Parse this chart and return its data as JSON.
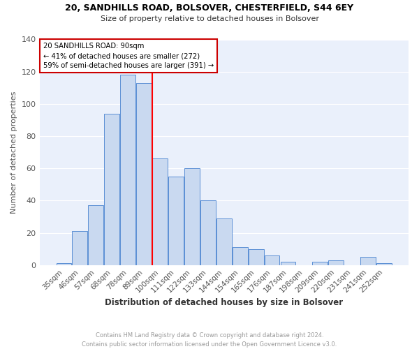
{
  "title1": "20, SANDHILLS ROAD, BOLSOVER, CHESTERFIELD, S44 6EY",
  "title2": "Size of property relative to detached houses in Bolsover",
  "xlabel": "Distribution of detached houses by size in Bolsover",
  "ylabel": "Number of detached properties",
  "footnote1": "Contains HM Land Registry data © Crown copyright and database right 2024.",
  "footnote2": "Contains public sector information licensed under the Open Government Licence v3.0.",
  "bar_labels": [
    "35sqm",
    "46sqm",
    "57sqm",
    "68sqm",
    "78sqm",
    "89sqm",
    "100sqm",
    "111sqm",
    "122sqm",
    "133sqm",
    "144sqm",
    "154sqm",
    "165sqm",
    "176sqm",
    "187sqm",
    "198sqm",
    "209sqm",
    "220sqm",
    "231sqm",
    "241sqm",
    "252sqm"
  ],
  "bar_values": [
    1,
    21,
    37,
    94,
    118,
    113,
    66,
    55,
    60,
    40,
    29,
    11,
    10,
    6,
    2,
    0,
    2,
    3,
    0,
    5,
    1
  ],
  "bar_color": "#c9d9f0",
  "bar_edge_color": "#5b8fd4",
  "property_line_label": "20 SANDHILLS ROAD: 90sqm",
  "annotation_line1": "← 41% of detached houses are smaller (272)",
  "annotation_line2": "59% of semi-detached houses are larger (391) →",
  "annotation_box_color": "#cc0000",
  "prop_line_index": 5.5,
  "ylim": [
    0,
    140
  ],
  "yticks": [
    0,
    20,
    40,
    60,
    80,
    100,
    120,
    140
  ],
  "background_color": "#eaf0fb",
  "grid_color": "#ffffff"
}
